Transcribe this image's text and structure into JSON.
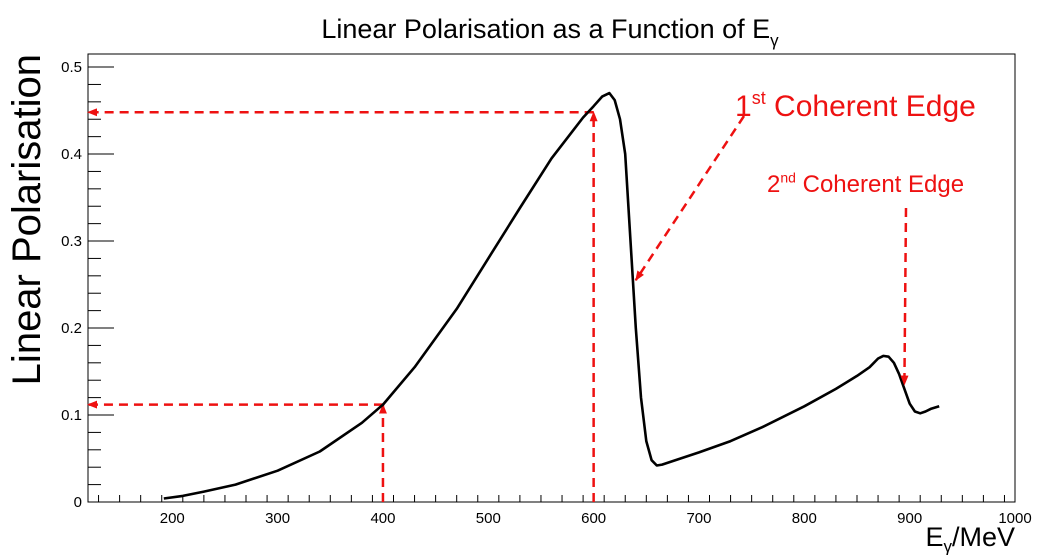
{
  "chart_data": {
    "type": "line",
    "title": "Linear Polarisation as a Function of E",
    "title_subscript": "γ",
    "xlabel": "E",
    "xlabel_subscript": "γ",
    "xlabel_suffix": "/MeV",
    "ylabel": "Linear Polarisation",
    "xlim": [
      120,
      1000
    ],
    "ylim": [
      0,
      0.515
    ],
    "xticks": [
      200,
      300,
      400,
      500,
      600,
      700,
      800,
      900,
      1000
    ],
    "yticks": [
      0,
      0.1,
      0.2,
      0.3,
      0.4,
      0.5
    ],
    "ytick_labels": [
      "0",
      "0.1",
      "0.2",
      "0.3",
      "0.4",
      "0.5"
    ],
    "grid": false,
    "series": [
      {
        "color": "#000000",
        "x": [
          192,
          210,
          230,
          260,
          300,
          340,
          380,
          400,
          430,
          470,
          500,
          530,
          560,
          590,
          600,
          608,
          615,
          620,
          625,
          630,
          635,
          640,
          645,
          650,
          655,
          660,
          665,
          680,
          700,
          730,
          760,
          800,
          830,
          850,
          862,
          870,
          875,
          880,
          885,
          890,
          895,
          900,
          905,
          910,
          915,
          920,
          928
        ],
        "y": [
          0.004,
          0.007,
          0.012,
          0.02,
          0.036,
          0.058,
          0.091,
          0.112,
          0.155,
          0.222,
          0.28,
          0.338,
          0.395,
          0.442,
          0.455,
          0.466,
          0.47,
          0.462,
          0.44,
          0.4,
          0.3,
          0.2,
          0.12,
          0.07,
          0.048,
          0.042,
          0.043,
          0.049,
          0.057,
          0.07,
          0.086,
          0.11,
          0.13,
          0.145,
          0.155,
          0.165,
          0.168,
          0.167,
          0.16,
          0.147,
          0.13,
          0.113,
          0.104,
          0.102,
          0.104,
          0.107,
          0.11
        ]
      }
    ],
    "annotations": [
      {
        "label_main": "1",
        "label_sup": "st",
        "label_rest": " Coherent Edge",
        "arrow_to": [
          640,
          0.255
        ],
        "color": "#ee1111"
      },
      {
        "label_main": "2",
        "label_sup": "nd",
        "label_rest": " Coherent Edge",
        "arrow_to": [
          895,
          0.135
        ],
        "color": "#ee1111"
      }
    ],
    "reference_lines": [
      {
        "from": [
          600,
          0
        ],
        "to": [
          600,
          0.448
        ],
        "arrow": "end",
        "color": "#ee1111"
      },
      {
        "from": [
          600,
          0.448
        ],
        "to": [
          120,
          0.448
        ],
        "arrow": "end",
        "color": "#ee1111"
      },
      {
        "from": [
          400,
          0
        ],
        "to": [
          400,
          0.112
        ],
        "arrow": "end",
        "color": "#ee1111"
      },
      {
        "from": [
          400,
          0.112
        ],
        "to": [
          120,
          0.112
        ],
        "arrow": "end",
        "color": "#ee1111"
      }
    ]
  }
}
